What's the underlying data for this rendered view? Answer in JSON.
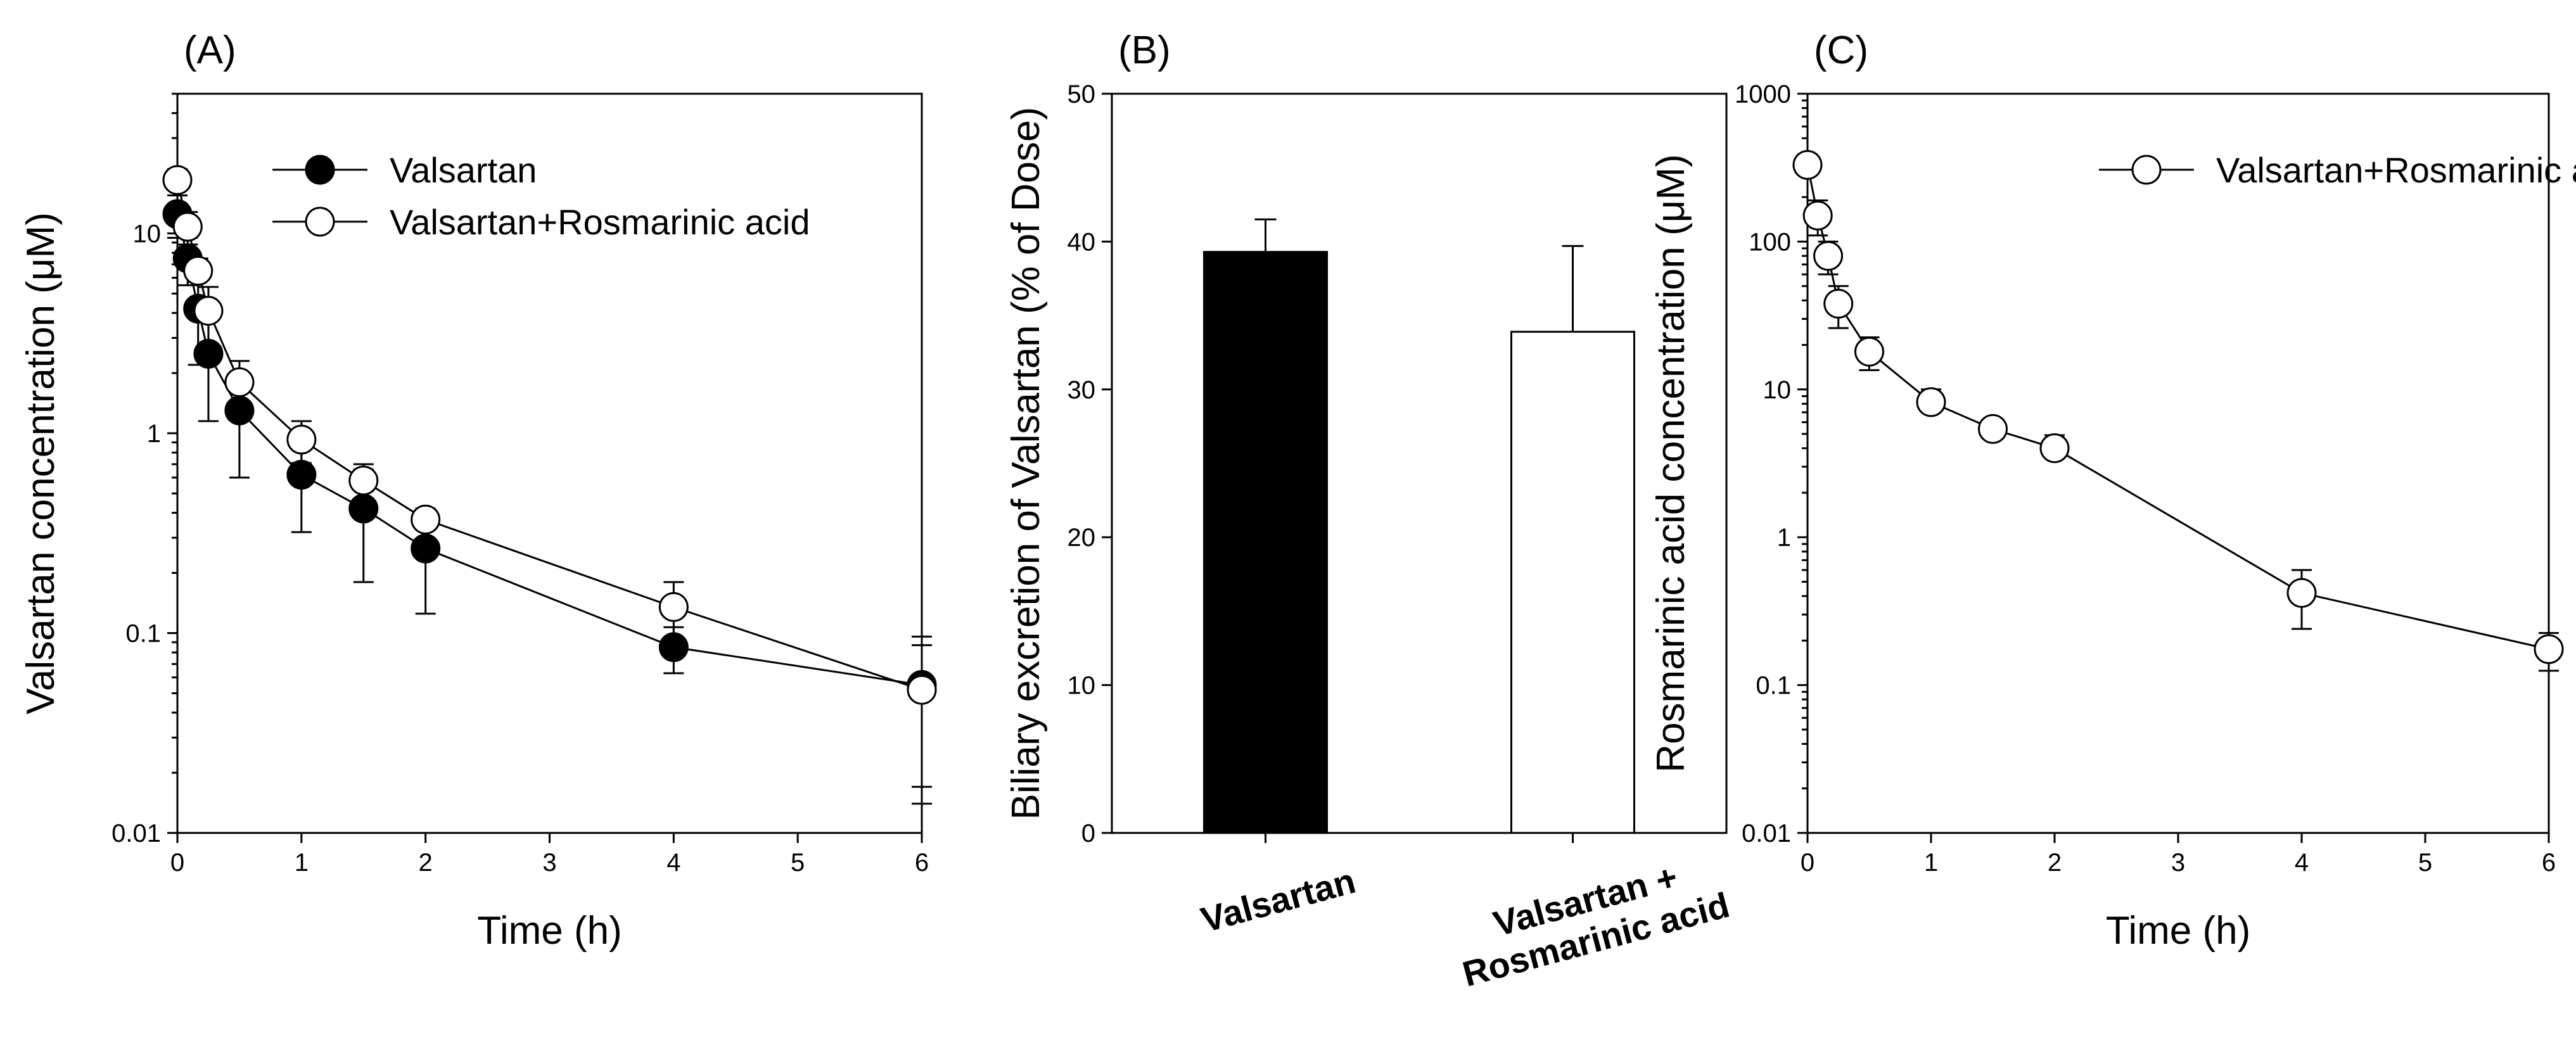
{
  "chart_data": [
    {
      "panel": "(A)",
      "type": "line",
      "yscale": "log",
      "xlabel": "Time (h)",
      "ylabel": "Valsartan concentration (μM)",
      "xlim": [
        0,
        6
      ],
      "ylim": [
        0.01,
        50
      ],
      "xticks": [
        0,
        1,
        2,
        3,
        4,
        5,
        6
      ],
      "xtick_labels": [
        "0",
        "1",
        "2",
        "3",
        "4",
        "5",
        "6"
      ],
      "yticks": [
        0.01,
        0.1,
        1,
        10
      ],
      "ytick_labels": [
        "0.01",
        "0.1",
        "1",
        "10"
      ],
      "legend_position": "top-right",
      "series": [
        {
          "name": "Valsartan",
          "marker": "filled-circle",
          "x": [
            0.0,
            0.083,
            0.167,
            0.25,
            0.5,
            1,
            1.5,
            2,
            4,
            6
          ],
          "y": [
            12.5,
            7.5,
            4.2,
            2.5,
            1.3,
            0.62,
            0.42,
            0.265,
            0.085,
            0.055
          ],
          "err": [
            3.0,
            2.0,
            2.0,
            1.35,
            0.7,
            0.3,
            0.24,
            0.14,
            0.022,
            0.041
          ]
        },
        {
          "name": "Valsartan+Rosmarinic acid",
          "marker": "open-circle",
          "x": [
            0.0,
            0.083,
            0.167,
            0.25,
            0.5,
            1,
            1.5,
            2,
            4,
            6
          ],
          "y": [
            18.5,
            10.8,
            6.5,
            4.1,
            1.8,
            0.93,
            0.58,
            0.37,
            0.135,
            0.052
          ],
          "err": [
            2.5,
            2.0,
            1.0,
            1.3,
            0.5,
            0.22,
            0.12,
            0.05,
            0.045,
            0.035
          ]
        }
      ]
    },
    {
      "panel": "(B)",
      "type": "bar",
      "xlabel": "",
      "ylabel": "Biliary excretion of Valsartan (% of Dose)",
      "ylim": [
        0,
        50
      ],
      "yticks": [
        0,
        10,
        20,
        30,
        40,
        50
      ],
      "ytick_labels": [
        "0",
        "10",
        "20",
        "30",
        "40",
        "50"
      ],
      "categories": [
        "Valsartan",
        "Valsartan + Rosmarinic acid"
      ],
      "category_lines": [
        [
          "Valsartan"
        ],
        [
          "Valsartan +",
          "Rosmarinic acid"
        ]
      ],
      "values": [
        39.3,
        33.9
      ],
      "err": [
        2.2,
        5.8
      ],
      "colors": [
        "#000000",
        "#ffffff"
      ]
    },
    {
      "panel": "(C)",
      "type": "line",
      "yscale": "log",
      "xlabel": "Time (h)",
      "ylabel": "Rosmarinic acid concentration (μM)",
      "xlim": [
        0,
        6
      ],
      "ylim": [
        0.01,
        1000
      ],
      "xticks": [
        0,
        1,
        2,
        3,
        4,
        5,
        6
      ],
      "xtick_labels": [
        "0",
        "1",
        "2",
        "3",
        "4",
        "5",
        "6"
      ],
      "yticks": [
        0.01,
        0.1,
        1,
        10,
        100,
        1000
      ],
      "ytick_labels": [
        "0.01",
        "0.1",
        "1",
        "10",
        "100",
        "1000"
      ],
      "legend_position": "top-right",
      "series": [
        {
          "name": "Valsartan+Rosmarinic acid",
          "marker": "open-circle",
          "x": [
            0.0,
            0.083,
            0.167,
            0.25,
            0.5,
            1,
            1.5,
            2,
            4,
            6
          ],
          "y": [
            330,
            150,
            80,
            38,
            18,
            8.2,
            5.4,
            4.0,
            0.42,
            0.175
          ],
          "err": [
            60,
            40,
            20,
            12,
            4.5,
            1.8,
            0.6,
            0.9,
            0.18,
            0.05
          ]
        }
      ]
    }
  ]
}
